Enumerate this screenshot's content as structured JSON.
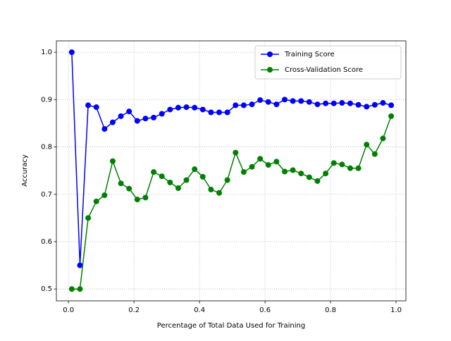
{
  "chart_data": {
    "type": "line",
    "xlabel": "Percentage of Total Data Used for Training",
    "ylabel": "Accuracy",
    "x": [
      0.01,
      0.035,
      0.06,
      0.085,
      0.11,
      0.135,
      0.16,
      0.185,
      0.21,
      0.235,
      0.26,
      0.285,
      0.31,
      0.335,
      0.36,
      0.385,
      0.41,
      0.435,
      0.46,
      0.485,
      0.51,
      0.535,
      0.56,
      0.585,
      0.61,
      0.635,
      0.66,
      0.685,
      0.71,
      0.735,
      0.76,
      0.785,
      0.81,
      0.835,
      0.86,
      0.885,
      0.91,
      0.935,
      0.96,
      0.985
    ],
    "series": [
      {
        "name": "Training Score",
        "color": "#0000ff",
        "values": [
          1.0,
          0.55,
          0.888,
          0.884,
          0.838,
          0.852,
          0.865,
          0.875,
          0.855,
          0.86,
          0.862,
          0.87,
          0.879,
          0.883,
          0.884,
          0.883,
          0.879,
          0.873,
          0.873,
          0.873,
          0.888,
          0.888,
          0.89,
          0.899,
          0.895,
          0.89,
          0.9,
          0.897,
          0.897,
          0.895,
          0.89,
          0.892,
          0.892,
          0.893,
          0.892,
          0.889,
          0.885,
          0.889,
          0.893,
          0.888
        ]
      },
      {
        "name": "Cross-Validation Score",
        "color": "#008000",
        "values": [
          0.5,
          0.5,
          0.65,
          0.685,
          0.698,
          0.77,
          0.723,
          0.712,
          0.689,
          0.693,
          0.747,
          0.738,
          0.725,
          0.713,
          0.73,
          0.753,
          0.737,
          0.71,
          0.703,
          0.73,
          0.788,
          0.747,
          0.758,
          0.775,
          0.762,
          0.769,
          0.748,
          0.751,
          0.744,
          0.736,
          0.728,
          0.744,
          0.766,
          0.763,
          0.755,
          0.755,
          0.805,
          0.785,
          0.818,
          0.865
        ]
      }
    ],
    "xlim": [
      -0.037,
      1.03
    ],
    "ylim": [
      0.475,
      1.024
    ],
    "xticks": [
      {
        "value": 0,
        "label": "0.0"
      },
      0.2,
      0.4,
      0.6,
      0.8,
      {
        "value": 1,
        "label": "1.0"
      }
    ],
    "yticks": [
      0.5,
      0.6,
      0.7,
      0.8,
      0.9,
      {
        "value": 1,
        "label": "1.0"
      }
    ],
    "grid": true,
    "legend": "upper right"
  }
}
